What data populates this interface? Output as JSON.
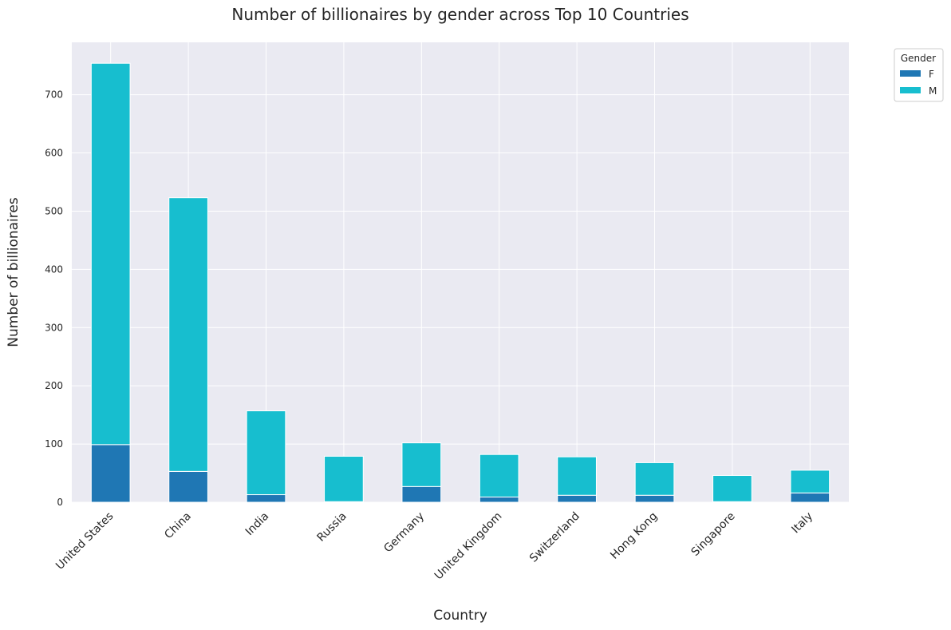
{
  "chart_data": {
    "type": "bar",
    "stacked": true,
    "title": "Number of billionaires by gender across Top 10 Countries",
    "xlabel": "Country",
    "ylabel": "Number of billionaires",
    "categories": [
      "United States",
      "China",
      "India",
      "Russia",
      "Germany",
      "United Kingdom",
      "Switzerland",
      "Hong Kong",
      "Singapore",
      "Italy"
    ],
    "series": [
      {
        "name": "F",
        "color": "#1f77b4",
        "values": [
          99,
          53,
          13,
          1,
          27,
          9,
          12,
          12,
          1,
          16
        ]
      },
      {
        "name": "M",
        "color": "#17becf",
        "values": [
          655,
          470,
          144,
          78,
          75,
          73,
          66,
          56,
          45,
          39
        ]
      }
    ],
    "ylim": [
      0,
      790
    ],
    "yticks": [
      0,
      100,
      200,
      300,
      400,
      500,
      600,
      700
    ],
    "grid": true,
    "legend": {
      "title": "Gender",
      "position": "upper-right-outside"
    }
  }
}
